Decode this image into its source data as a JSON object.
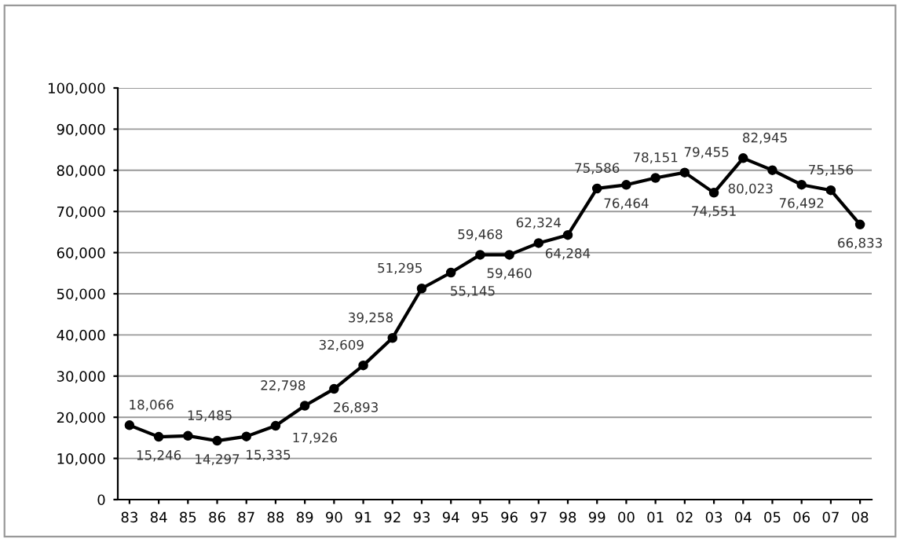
{
  "chart_data": {
    "type": "line",
    "categories": [
      "83",
      "84",
      "85",
      "86",
      "87",
      "88",
      "89",
      "90",
      "91",
      "92",
      "93",
      "94",
      "95",
      "96",
      "97",
      "98",
      "99",
      "00",
      "01",
      "02",
      "03",
      "04",
      "05",
      "06",
      "07",
      "08"
    ],
    "values": [
      18066,
      15246,
      15485,
      14297,
      15335,
      17926,
      22798,
      26893,
      32609,
      39258,
      51295,
      55145,
      59468,
      59460,
      62324,
      64284,
      75586,
      76464,
      78151,
      79455,
      74551,
      82945,
      80023,
      76492,
      75156,
      66833
    ],
    "value_labels": [
      "18,066",
      "15,246",
      "15,485",
      "14,297",
      "15,335",
      "17,926",
      "22,798",
      "26,893",
      "32,609",
      "39,258",
      "51,295",
      "55,145",
      "59,468",
      "59,460",
      "62,324",
      "64,284",
      "75,586",
      "76,464",
      "78,151",
      "79,455",
      "74,551",
      "82,945",
      "80,023",
      "76,492",
      "75,156",
      "66,833"
    ],
    "color": "#000000",
    "marker": "circle",
    "ylim": [
      0,
      100000
    ],
    "yticks": [
      {
        "value": 0,
        "label": "0"
      },
      {
        "value": 10000,
        "label": "10,000"
      },
      {
        "value": 20000,
        "label": "20,000"
      },
      {
        "value": 30000,
        "label": "30,000"
      },
      {
        "value": 40000,
        "label": "40,000"
      },
      {
        "value": 50000,
        "label": "50,000"
      },
      {
        "value": 60000,
        "label": "60,000"
      },
      {
        "value": 70000,
        "label": "70,000"
      },
      {
        "value": 80000,
        "label": "80,000"
      },
      {
        "value": 90000,
        "label": "90,000"
      },
      {
        "value": 100000,
        "label": "100,000"
      }
    ],
    "grid": "y"
  }
}
